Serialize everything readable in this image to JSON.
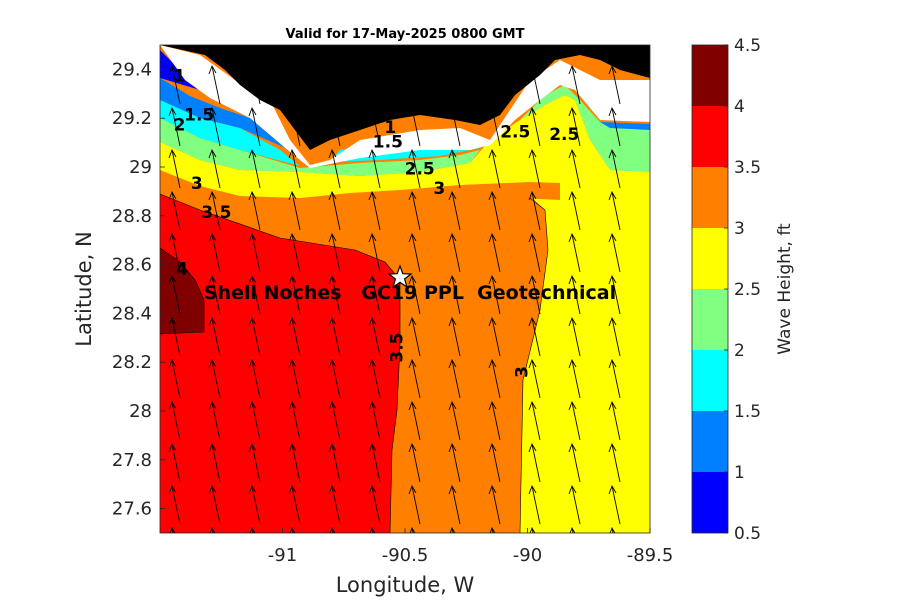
{
  "chart_data": {
    "type": "heatmap",
    "title": "Valid for 17-May-2025 0800 GMT",
    "xlabel": "Longitude, W",
    "ylabel": "Latitude, N",
    "xlim": [
      -91.5,
      -89.5
    ],
    "ylim": [
      27.5,
      29.5
    ],
    "x_ticks": [
      -91,
      -90.5,
      -90,
      -89.5
    ],
    "x_tick_labels": [
      "-91",
      "-90.5",
      "-90",
      "-89.5"
    ],
    "y_ticks": [
      27.6,
      27.8,
      28,
      28.2,
      28.4,
      28.6,
      28.8,
      29,
      29.2,
      29.4
    ],
    "y_tick_labels": [
      "27.6",
      "27.8",
      "28",
      "28.2",
      "28.4",
      "28.6",
      "28.8",
      "29",
      "29.2",
      "29.4"
    ],
    "colorbar": {
      "label": "Wave Height, ft",
      "range": [
        0.5,
        4.5
      ],
      "levels": [
        0.5,
        1,
        1.5,
        2,
        2.5,
        3,
        3.5,
        4,
        4.5
      ],
      "tick_labels": [
        "0.5",
        "1",
        "1.5",
        "2",
        "2.5",
        "3",
        "3.5",
        "4",
        "4.5"
      ],
      "colors": [
        "#0000ff",
        "#0080ff",
        "#00ffff",
        "#80ff80",
        "#ffff00",
        "#ff8000",
        "#ff0000",
        "#800000"
      ]
    },
    "contour_labels": [
      {
        "text": "1",
        "x": -91.42,
        "y": 29.35
      },
      {
        "text": "1.5",
        "x": -91.34,
        "y": 29.19
      },
      {
        "text": "2",
        "x": -91.42,
        "y": 29.15
      },
      {
        "text": "3",
        "x": -91.35,
        "y": 28.91
      },
      {
        "text": "3.5",
        "x": -91.27,
        "y": 28.79
      },
      {
        "text": "4",
        "x": -91.41,
        "y": 28.56
      },
      {
        "text": "1",
        "x": -90.56,
        "y": 29.14
      },
      {
        "text": "1.5",
        "x": -90.57,
        "y": 29.08
      },
      {
        "text": "2.5",
        "x": -90.44,
        "y": 28.97
      },
      {
        "text": "3",
        "x": -90.36,
        "y": 28.89
      },
      {
        "text": "2.5",
        "x": -90.05,
        "y": 29.12
      },
      {
        "text": "2.5",
        "x": -89.85,
        "y": 29.11
      },
      {
        "text": "3.5",
        "x": -90.51,
        "y": 28.26
      },
      {
        "text": "3",
        "x": -90.0,
        "y": 28.16
      }
    ],
    "station": {
      "name": "Shell Noches   GC19 PPL  Geotechnical",
      "lon": -90.5,
      "lat": 28.55
    },
    "wave_direction": "toward north-northwest (arrows)"
  }
}
